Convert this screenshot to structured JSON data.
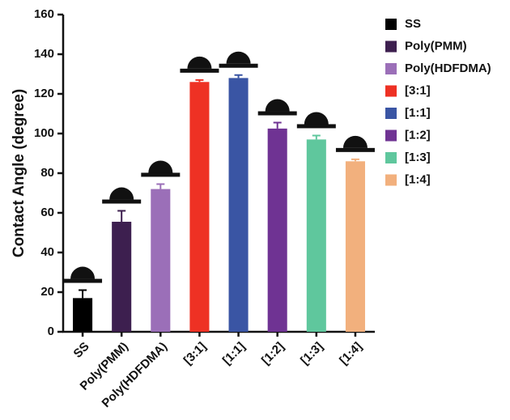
{
  "chart_data": {
    "type": "bar",
    "y_label": "Contact Angle (degree)",
    "categories": [
      "SS",
      "Poly(PMM)",
      "Poly(HDFDMA)",
      "[3:1]",
      "[1:1]",
      "[1:2]",
      "[1:3]",
      "[1:4]"
    ],
    "values": [
      17,
      55.5,
      72,
      126,
      128,
      102.5,
      97,
      86
    ],
    "errors": [
      4,
      5.5,
      2.5,
      1,
      1.5,
      3,
      2,
      1
    ],
    "colors": [
      "#000000",
      "#3d1f4f",
      "#9b6fb8",
      "#ee3124",
      "#3a55a4",
      "#6f3393",
      "#5fc79d",
      "#f2b07d"
    ],
    "ylim": [
      0,
      160
    ],
    "yticks": [
      0,
      20,
      40,
      60,
      80,
      100,
      120,
      140,
      160
    ],
    "legend": "right"
  }
}
